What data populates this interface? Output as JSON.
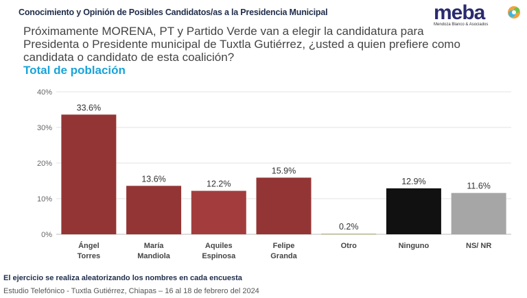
{
  "header": {
    "title": "Conocimiento y Opinión de Posibles Candidatos/as a la Presidencia Municipal",
    "question": "Próximamente MORENA, PT y Partido Verde van a elegir la candidatura para Presidenta o Presidente municipal de Tuxtla Gutiérrez, ¿usted a quien prefiere como candidata o candidato de esta coalición?",
    "subtitle": "Total de población"
  },
  "logo": {
    "text": "meba",
    "tagline": "Mendoza Blanco & Asociados"
  },
  "footer": {
    "note": "El ejercicio se realiza aleatorizando los nombres en cada encuesta",
    "source": "Estudio Telefónico - Tuxtla Gutiérrez, Chiapas – 16 al 18 de febrero del 2024"
  },
  "chart_data": {
    "type": "bar",
    "categories": [
      [
        "Ángel",
        "Torres"
      ],
      [
        "María",
        "Mandiola"
      ],
      [
        "Aquiles",
        "Espinosa"
      ],
      [
        "Felipe",
        "Granda"
      ],
      [
        "Otro"
      ],
      [
        "Ninguno"
      ],
      [
        "NS/ NR"
      ]
    ],
    "values": [
      33.6,
      13.6,
      12.2,
      15.9,
      0.2,
      12.9,
      11.6
    ],
    "data_labels": [
      "33.6%",
      "13.6%",
      "12.2%",
      "15.9%",
      "0.2%",
      "12.9%",
      "11.6%"
    ],
    "colors": [
      "#943535",
      "#943535",
      "#a33d3d",
      "#943535",
      "#b5b58a",
      "#111111",
      "#a6a6a6"
    ],
    "ylim": [
      0,
      40
    ],
    "yticks": [
      "0%",
      "10%",
      "20%",
      "30%",
      "40%"
    ],
    "grid": true,
    "unit": "%"
  }
}
